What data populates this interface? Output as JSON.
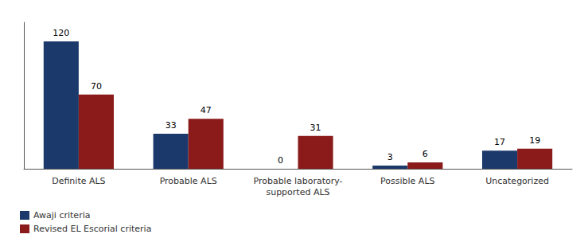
{
  "chart_data": {
    "type": "bar",
    "categories": [
      "Definite ALS",
      "Probable ALS",
      "Probable laboratory-\nsupported ALS",
      "Possible ALS",
      "Uncategorized"
    ],
    "series": [
      {
        "name": "Awaji criteria",
        "color": "#1B3A6B",
        "values": [
          120,
          33,
          0,
          3,
          17
        ]
      },
      {
        "name": "Revised EL Escorial criteria",
        "color": "#8B1A1A",
        "values": [
          70,
          47,
          31,
          6,
          19
        ]
      }
    ],
    "ylim": [
      0,
      138
    ],
    "grid": false,
    "legend": "lower left",
    "data_labels": true,
    "tick_labels": "x"
  }
}
